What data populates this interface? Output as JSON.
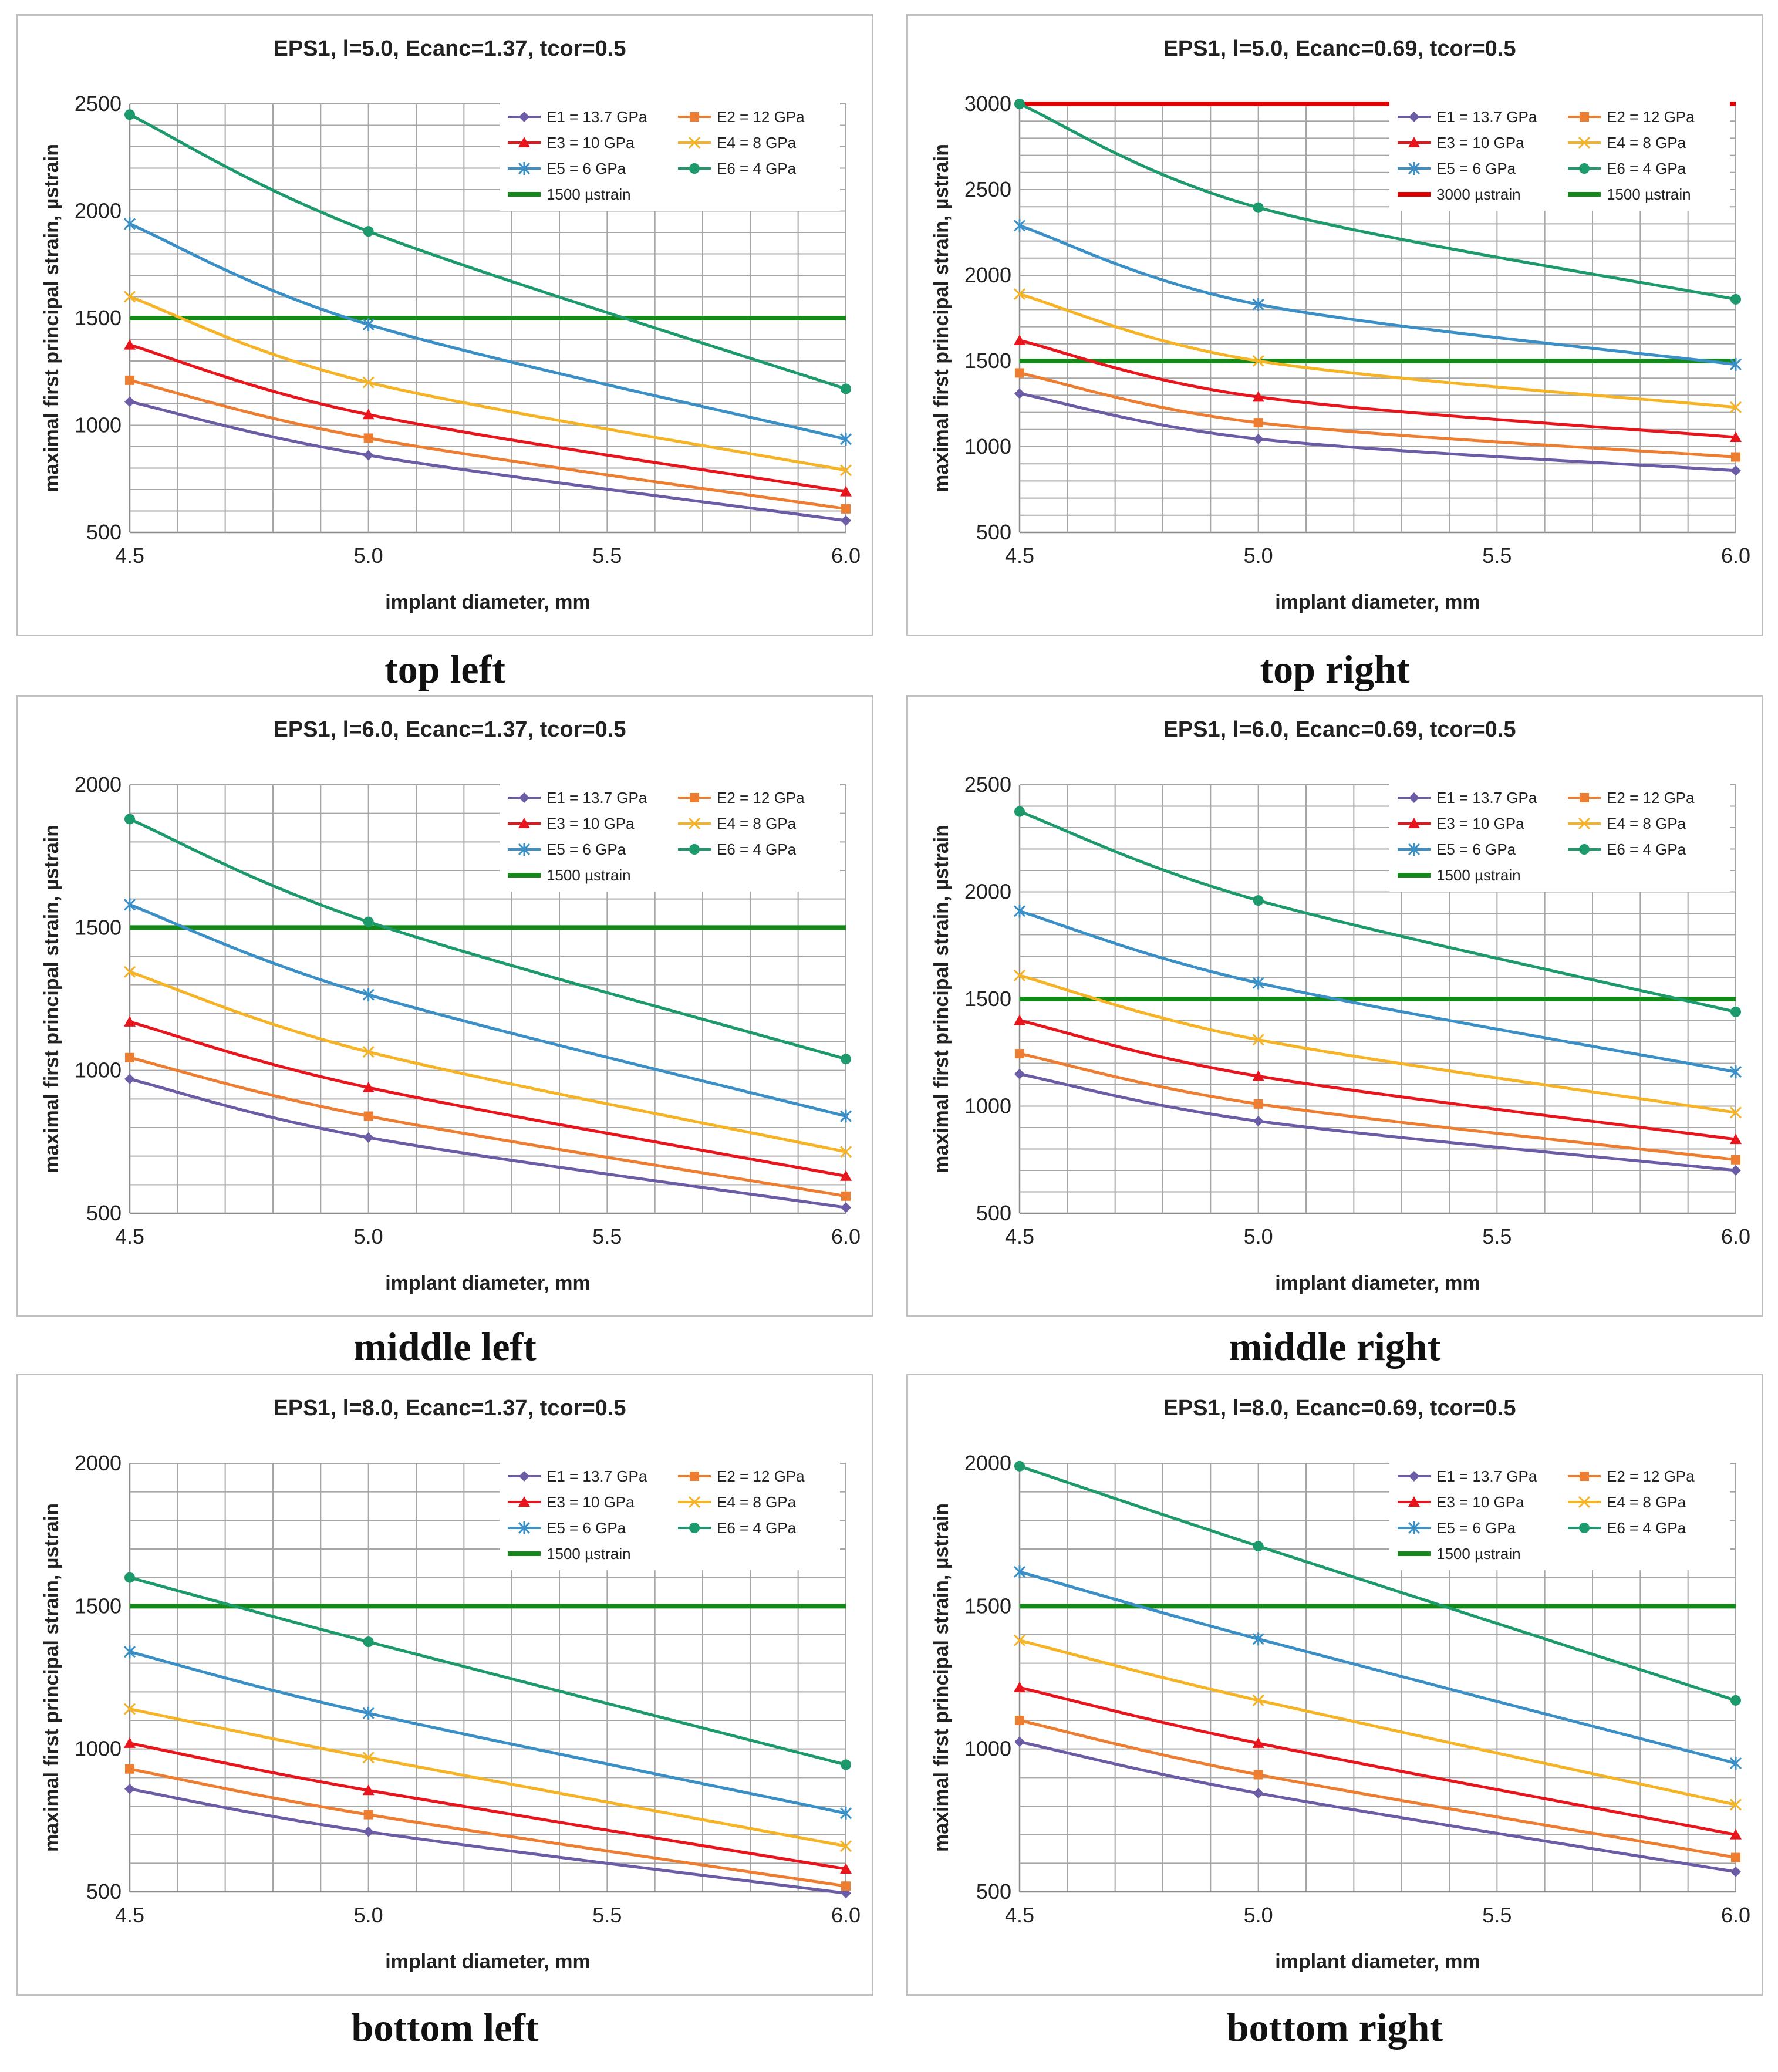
{
  "style": {
    "series_colors": [
      "#6b5ca5",
      "#ed7d31",
      "#e8161c",
      "#f5b325",
      "#3a8fc7",
      "#1d9a6c"
    ],
    "threshold_1500_color": "#158a1a",
    "threshold_3000_color": "#e00000",
    "grid_color": "#a6a6a6"
  },
  "chart_data": [
    {
      "id": "top-left",
      "caption": "top left",
      "type": "line",
      "title": "EPS1, l=5.0, Ecanc=1.37, tcor=0.5",
      "xlabel": "implant diameter, mm",
      "ylabel": "maximal first principal strain, µstrain",
      "xlim": [
        4.5,
        6.0
      ],
      "ylim": [
        500,
        2500
      ],
      "xticks": [
        "4.5",
        "5.0",
        "5.5",
        "6.0"
      ],
      "yticks": [
        "500",
        "1000",
        "1500",
        "2000",
        "2500"
      ],
      "x": [
        4.5,
        5.0,
        6.0
      ],
      "series": [
        {
          "name": "E1 = 13.7 GPa",
          "marker": "diamond",
          "values": [
            1110,
            860,
            555
          ]
        },
        {
          "name": "E2 = 12 GPa",
          "marker": "square",
          "values": [
            1210,
            940,
            610
          ]
        },
        {
          "name": "E3 = 10 GPa",
          "marker": "triangle",
          "values": [
            1375,
            1050,
            690
          ]
        },
        {
          "name": "E4 = 8 GPa",
          "marker": "x",
          "values": [
            1600,
            1200,
            790
          ]
        },
        {
          "name": "E5 = 6 GPa",
          "marker": "star",
          "values": [
            1940,
            1470,
            935
          ]
        },
        {
          "name": "E6 = 4 GPa",
          "marker": "circle",
          "values": [
            2450,
            1905,
            1170
          ]
        }
      ],
      "thresholds": [
        {
          "name": "1500 µstrain",
          "value": 1500,
          "color": "green"
        }
      ]
    },
    {
      "id": "top-right",
      "caption": "top right",
      "type": "line",
      "title": "EPS1, l=5.0, Ecanc=0.69, tcor=0.5",
      "xlabel": "implant diameter, mm",
      "ylabel": "maximal first principal strain, µstrain",
      "xlim": [
        4.5,
        6.0
      ],
      "ylim": [
        500,
        3000
      ],
      "xticks": [
        "4.5",
        "5.0",
        "5.5",
        "6.0"
      ],
      "yticks": [
        "500",
        "1000",
        "1500",
        "2000",
        "2500",
        "3000"
      ],
      "x": [
        4.5,
        5.0,
        6.0
      ],
      "series": [
        {
          "name": "E1 = 13.7 GPa",
          "marker": "diamond",
          "values": [
            1310,
            1045,
            860
          ]
        },
        {
          "name": "E2 = 12 GPa",
          "marker": "square",
          "values": [
            1430,
            1140,
            940
          ]
        },
        {
          "name": "E3 = 10 GPa",
          "marker": "triangle",
          "values": [
            1620,
            1290,
            1055
          ]
        },
        {
          "name": "E4 = 8 GPa",
          "marker": "x",
          "values": [
            1890,
            1500,
            1230
          ]
        },
        {
          "name": "E5 = 6 GPa",
          "marker": "star",
          "values": [
            2290,
            1830,
            1480
          ]
        },
        {
          "name": "E6 = 4 GPa",
          "marker": "circle",
          "values": [
            3000,
            2395,
            1860
          ]
        }
      ],
      "thresholds": [
        {
          "name": "3000 µstrain",
          "value": 3000,
          "color": "red"
        },
        {
          "name": "1500 µstrain",
          "value": 1500,
          "color": "green"
        }
      ]
    },
    {
      "id": "middle-left",
      "caption": "middle left",
      "type": "line",
      "title": "EPS1, l=6.0, Ecanc=1.37, tcor=0.5",
      "xlabel": "implant diameter, mm",
      "ylabel": "maximal first principal strain, µstrain",
      "xlim": [
        4.5,
        6.0
      ],
      "ylim": [
        500,
        2000
      ],
      "xticks": [
        "4.5",
        "5.0",
        "5.5",
        "6.0"
      ],
      "yticks": [
        "500",
        "1000",
        "1500",
        "2000"
      ],
      "x": [
        4.5,
        5.0,
        6.0
      ],
      "series": [
        {
          "name": "E1 = 13.7 GPa",
          "marker": "diamond",
          "values": [
            970,
            765,
            520
          ]
        },
        {
          "name": "E2 = 12 GPa",
          "marker": "square",
          "values": [
            1045,
            840,
            560
          ]
        },
        {
          "name": "E3 = 10 GPa",
          "marker": "triangle",
          "values": [
            1170,
            940,
            630
          ]
        },
        {
          "name": "E4 = 8 GPa",
          "marker": "x",
          "values": [
            1345,
            1065,
            715
          ]
        },
        {
          "name": "E5 = 6 GPa",
          "marker": "star",
          "values": [
            1580,
            1265,
            840
          ]
        },
        {
          "name": "E6 = 4 GPa",
          "marker": "circle",
          "values": [
            1880,
            1520,
            1040
          ]
        }
      ],
      "thresholds": [
        {
          "name": "1500 µstrain",
          "value": 1500,
          "color": "green"
        }
      ]
    },
    {
      "id": "middle-right",
      "caption": "middle right",
      "type": "line",
      "title": "EPS1, l=6.0, Ecanc=0.69, tcor=0.5",
      "xlabel": "implant diameter, mm",
      "ylabel": "maximal first principal strain, µstrain",
      "xlim": [
        4.5,
        6.0
      ],
      "ylim": [
        500,
        2500
      ],
      "xticks": [
        "4.5",
        "5.0",
        "5.5",
        "6.0"
      ],
      "yticks": [
        "500",
        "1000",
        "1500",
        "2000",
        "2500"
      ],
      "x": [
        4.5,
        5.0,
        6.0
      ],
      "series": [
        {
          "name": "E1 = 13.7 GPa",
          "marker": "diamond",
          "values": [
            1150,
            930,
            700
          ]
        },
        {
          "name": "E2 = 12 GPa",
          "marker": "square",
          "values": [
            1245,
            1010,
            750
          ]
        },
        {
          "name": "E3 = 10 GPa",
          "marker": "triangle",
          "values": [
            1400,
            1140,
            845
          ]
        },
        {
          "name": "E4 = 8 GPa",
          "marker": "x",
          "values": [
            1610,
            1310,
            970
          ]
        },
        {
          "name": "E5 = 6 GPa",
          "marker": "star",
          "values": [
            1910,
            1575,
            1160
          ]
        },
        {
          "name": "E6 = 4 GPa",
          "marker": "circle",
          "values": [
            2375,
            1960,
            1440
          ]
        }
      ],
      "thresholds": [
        {
          "name": "1500 µstrain",
          "value": 1500,
          "color": "green"
        }
      ]
    },
    {
      "id": "bottom-left",
      "caption": "bottom left",
      "type": "line",
      "title": "EPS1, l=8.0, Ecanc=1.37, tcor=0.5",
      "xlabel": "implant diameter, mm",
      "ylabel": "maximal first principal strain, µstrain",
      "xlim": [
        4.5,
        6.0
      ],
      "ylim": [
        500,
        2000
      ],
      "xticks": [
        "4.5",
        "5.0",
        "5.5",
        "6.0"
      ],
      "yticks": [
        "500",
        "1000",
        "1500",
        "2000"
      ],
      "x": [
        4.5,
        5.0,
        6.0
      ],
      "series": [
        {
          "name": "E1 = 13.7 GPa",
          "marker": "diamond",
          "values": [
            860,
            710,
            495
          ]
        },
        {
          "name": "E2 = 12 GPa",
          "marker": "square",
          "values": [
            930,
            770,
            520
          ]
        },
        {
          "name": "E3 = 10 GPa",
          "marker": "triangle",
          "values": [
            1020,
            855,
            580
          ]
        },
        {
          "name": "E4 = 8 GPa",
          "marker": "x",
          "values": [
            1140,
            970,
            660
          ]
        },
        {
          "name": "E5 = 6 GPa",
          "marker": "star",
          "values": [
            1340,
            1125,
            775
          ]
        },
        {
          "name": "E6 = 4 GPa",
          "marker": "circle",
          "values": [
            1600,
            1375,
            945
          ]
        }
      ],
      "thresholds": [
        {
          "name": "1500 µstrain",
          "value": 1500,
          "color": "green"
        }
      ]
    },
    {
      "id": "bottom-right",
      "caption": "bottom right",
      "type": "line",
      "title": "EPS1, l=8.0, Ecanc=0.69, tcor=0.5",
      "xlabel": "implant diameter, mm",
      "ylabel": "maximal first principal strain, µstrain",
      "xlim": [
        4.5,
        6.0
      ],
      "ylim": [
        500,
        2000
      ],
      "xticks": [
        "4.5",
        "5.0",
        "5.5",
        "6.0"
      ],
      "yticks": [
        "500",
        "1000",
        "1500",
        "2000"
      ],
      "x": [
        4.5,
        5.0,
        6.0
      ],
      "series": [
        {
          "name": "E1 = 13.7 GPa",
          "marker": "diamond",
          "values": [
            1025,
            845,
            570
          ]
        },
        {
          "name": "E2 = 12 GPa",
          "marker": "square",
          "values": [
            1100,
            910,
            620
          ]
        },
        {
          "name": "E3 = 10 GPa",
          "marker": "triangle",
          "values": [
            1215,
            1020,
            700
          ]
        },
        {
          "name": "E4 = 8 GPa",
          "marker": "x",
          "values": [
            1380,
            1170,
            805
          ]
        },
        {
          "name": "E5 = 6 GPa",
          "marker": "star",
          "values": [
            1620,
            1385,
            950
          ]
        },
        {
          "name": "E6 = 4 GPa",
          "marker": "circle",
          "values": [
            1990,
            1710,
            1170
          ]
        }
      ],
      "thresholds": [
        {
          "name": "1500 µstrain",
          "value": 1500,
          "color": "green"
        }
      ]
    }
  ]
}
